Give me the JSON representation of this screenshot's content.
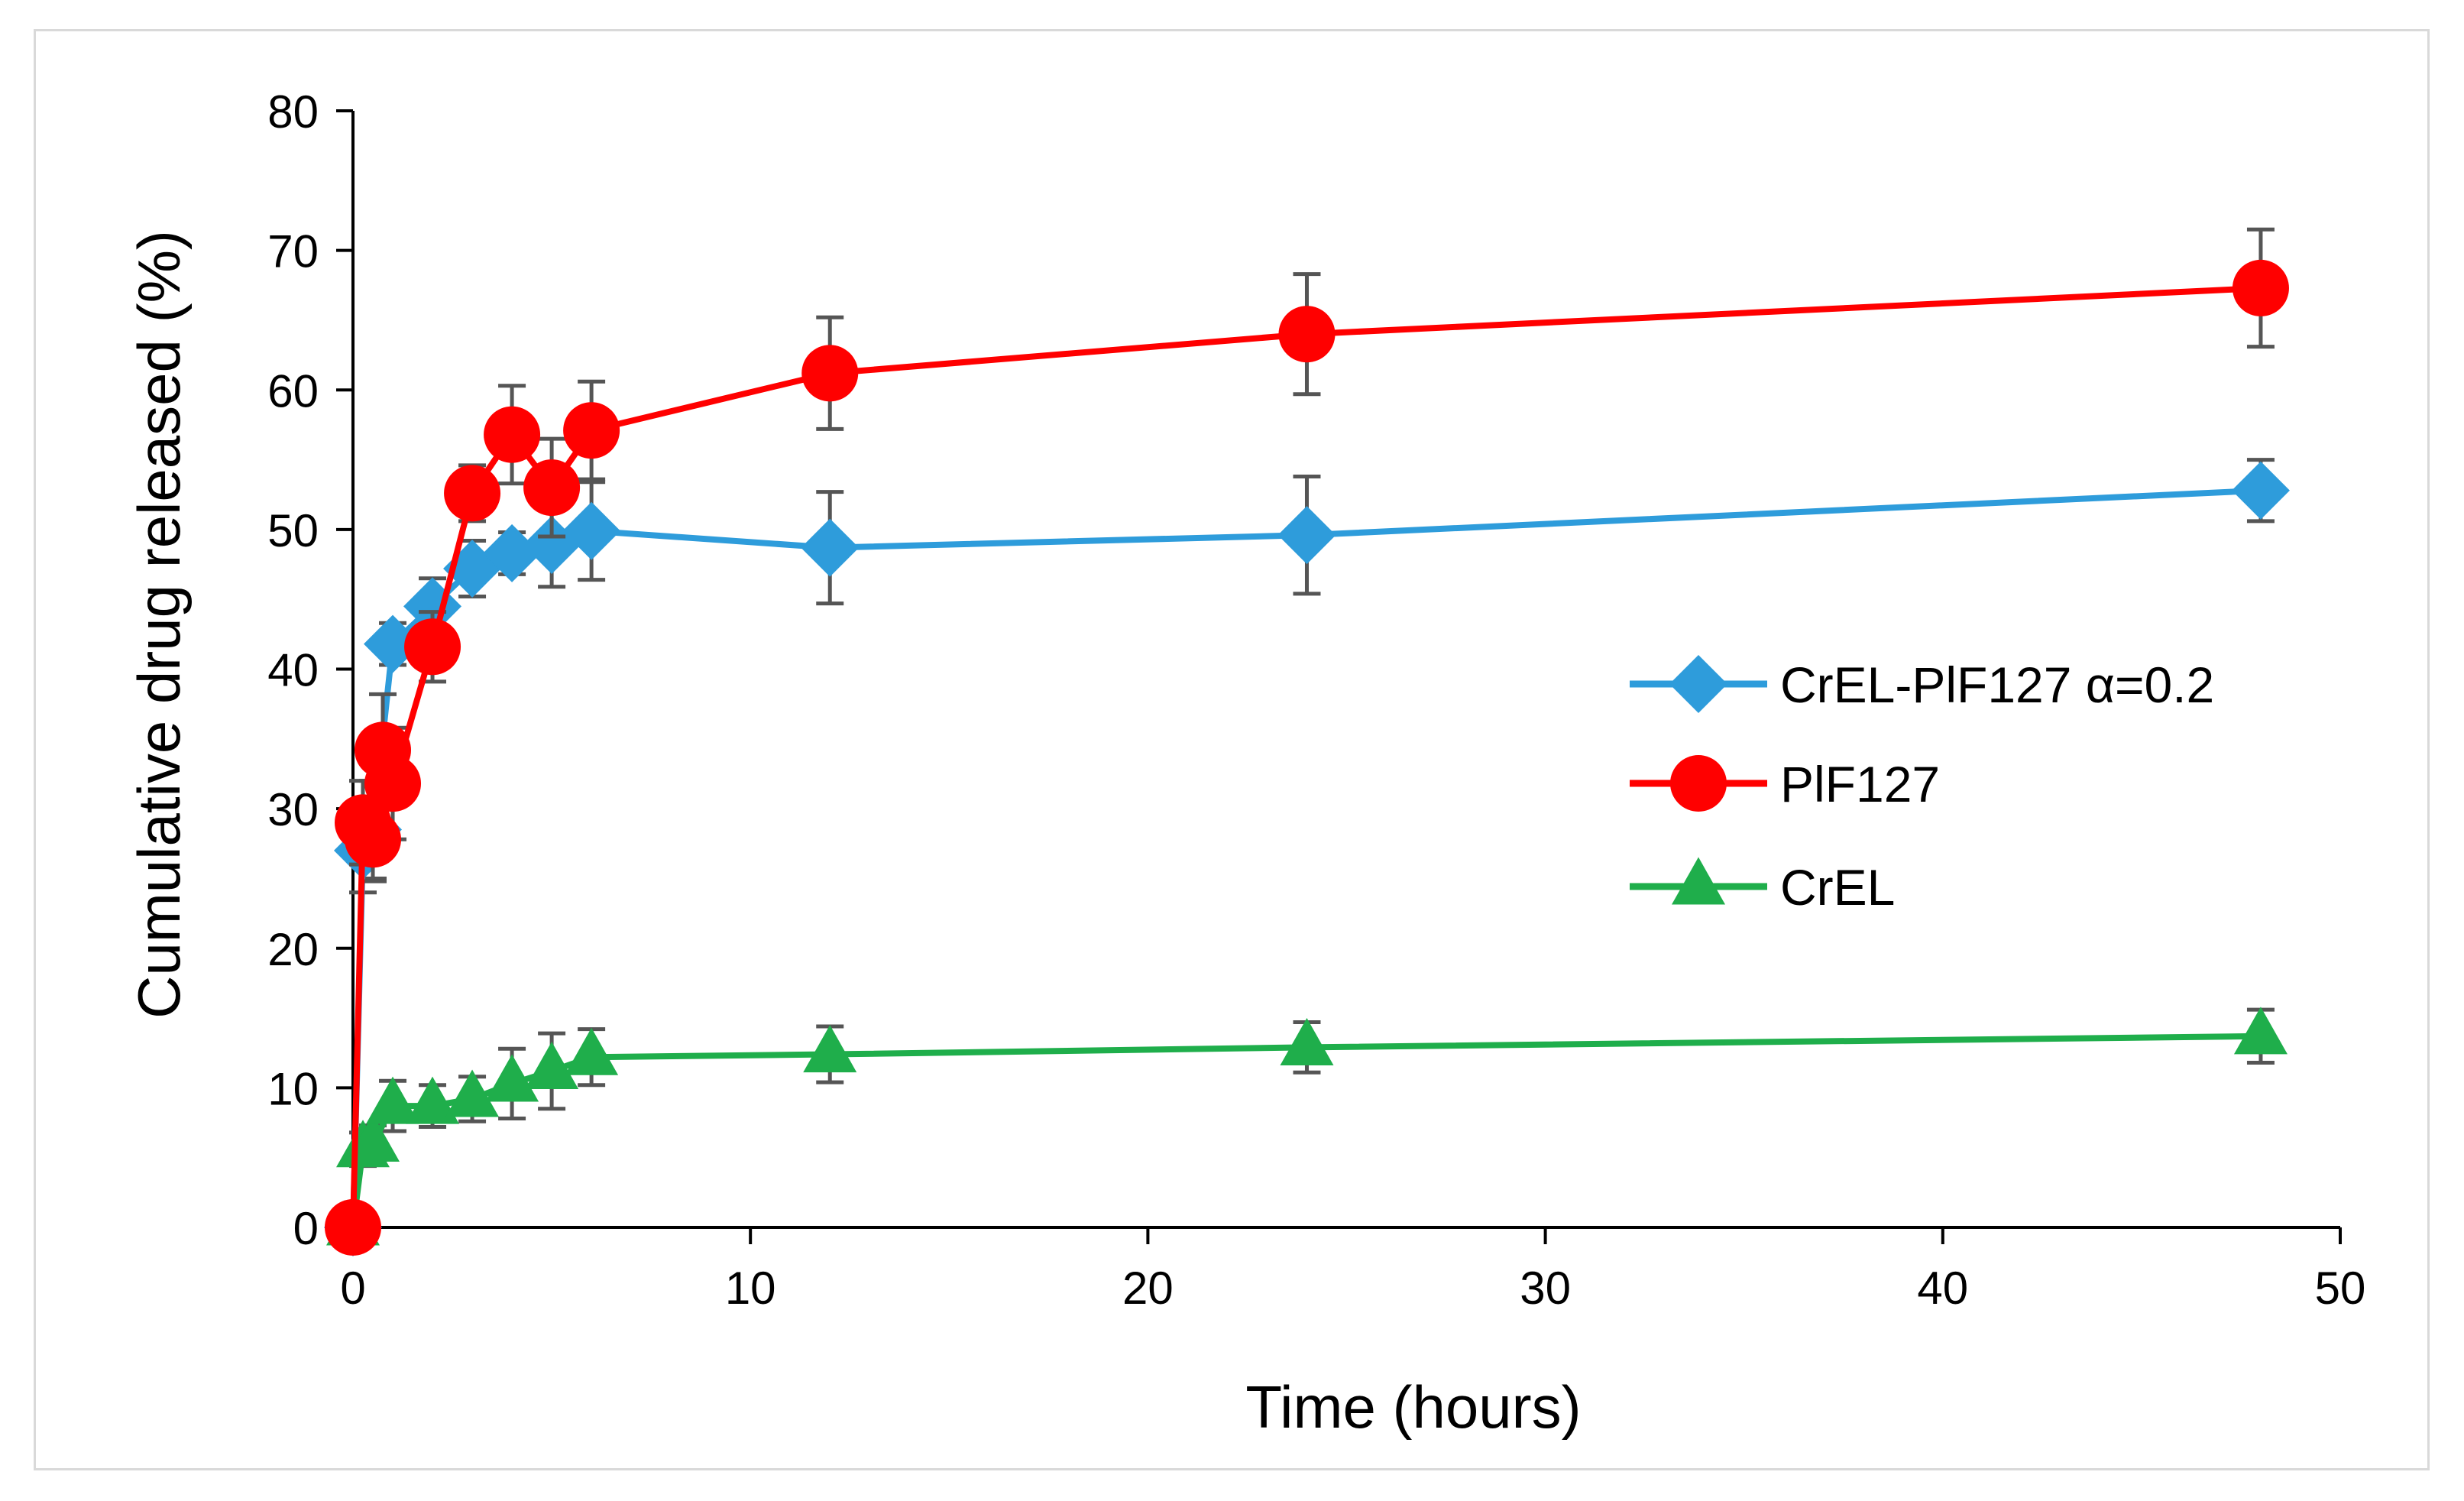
{
  "chart_data": {
    "type": "line",
    "title": "",
    "xlabel": "Time (hours)",
    "ylabel": "Cumulative drug released (%)",
    "xlim": [
      0,
      50
    ],
    "ylim": [
      0,
      80
    ],
    "xticks": [
      0,
      10,
      20,
      30,
      40,
      50
    ],
    "yticks": [
      0,
      10,
      20,
      30,
      40,
      50,
      60,
      70,
      80
    ],
    "x_tick_labels": [
      "0",
      "10",
      "20",
      "30",
      "40",
      "50"
    ],
    "y_tick_labels": [
      "0",
      "10",
      "20",
      "30",
      "40",
      "50",
      "60",
      "70",
      "80"
    ],
    "grid": false,
    "legend_position": "right",
    "series": [
      {
        "name": "CrEL-PlF127 α=0.2",
        "marker": "diamond",
        "color": "#2e9cdb",
        "x": [
          0,
          0.25,
          0.5,
          1,
          2,
          3,
          4,
          5,
          6,
          12,
          24,
          48
        ],
        "y": [
          0,
          27,
          28.5,
          41.8,
          44.5,
          47.2,
          48.3,
          48.9,
          49.9,
          48.7,
          49.6,
          52.8
        ],
        "err": [
          0,
          3,
          3.5,
          1.5,
          2,
          2,
          1.5,
          3,
          3.5,
          4,
          4.2,
          2.2
        ]
      },
      {
        "name": "PlF127",
        "marker": "circle",
        "color": "#ff0000",
        "x": [
          0,
          0.25,
          0.5,
          0.75,
          1,
          2,
          3,
          4,
          5,
          6,
          12,
          24,
          48
        ],
        "y": [
          0,
          29,
          27.8,
          34.2,
          31.8,
          41.6,
          52.6,
          56.8,
          53,
          57.1,
          61.2,
          64,
          67.3
        ],
        "err": [
          0,
          3,
          3,
          4,
          4,
          2.5,
          2,
          3.5,
          3.5,
          3.5,
          4,
          4.3,
          4.2
        ]
      },
      {
        "name": "CrEL",
        "marker": "triangle",
        "color": "#1fae4b",
        "x": [
          0,
          0.25,
          0.5,
          1,
          2,
          3,
          4,
          5,
          6,
          12,
          24,
          48
        ],
        "y": [
          0,
          5.6,
          6,
          8.7,
          8.7,
          9.2,
          10.3,
          11.2,
          12.2,
          12.4,
          12.9,
          13.7
        ],
        "err": [
          0,
          1.2,
          1.3,
          1.8,
          1.5,
          1.6,
          2.5,
          2.7,
          2,
          2,
          1.8,
          1.9
        ]
      }
    ]
  }
}
